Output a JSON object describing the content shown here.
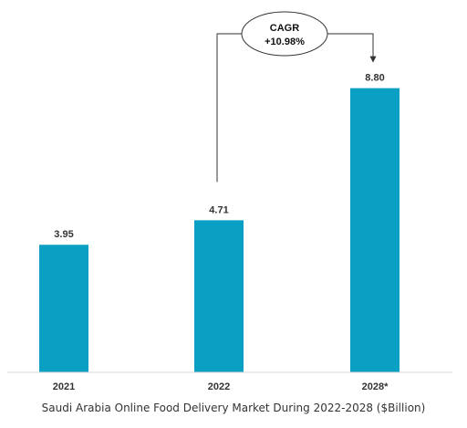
{
  "chart_data": {
    "type": "bar",
    "title": "Saudi Arabia Online Food Delivery Market During 2022-2028 ($Billion)",
    "categories": [
      "2021",
      "2022",
      "2028*"
    ],
    "values": [
      3.95,
      4.71,
      8.8
    ],
    "value_labels": [
      "3.95",
      "4.71",
      "8.80"
    ],
    "ylim": [
      0,
      10.4
    ],
    "grid": false,
    "legend": "none",
    "bar_color": "#0aa0c4",
    "annotation": {
      "title": "CAGR",
      "value": "+10.98%",
      "from_category": "2022",
      "to_category": "2028*"
    }
  }
}
